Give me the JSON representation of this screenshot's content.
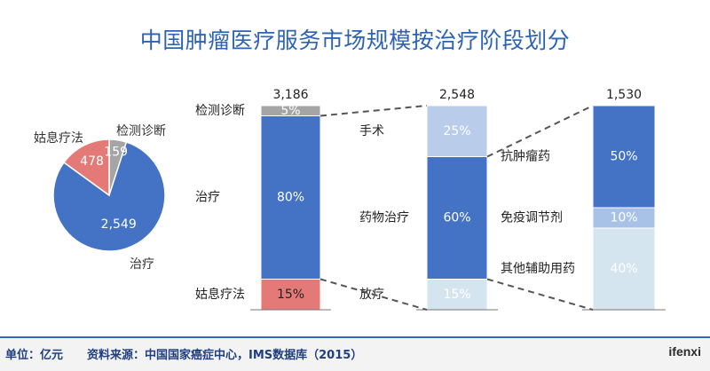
{
  "title": "中国肿瘤医疗服务市场规模按治疗阶段划分",
  "footer": {
    "unit": "单位：亿元",
    "source": "资料来源：中国国家癌症中心，IMS数据库（2015）",
    "brand": "ifenxi"
  },
  "colors": {
    "title": "#2d63b5",
    "dark_blue": "#4472c4",
    "salmon": "#e47a78",
    "gray": "#a5a5a5",
    "light_blue": "#b9cdeb",
    "pale_blue": "#d5e5f0",
    "mid_blue": "#a8c1e6"
  },
  "chart_data": [
    {
      "type": "pie",
      "slices": [
        {
          "label": "治疗",
          "value": 2549,
          "display": "2,549",
          "color": "#4472c4"
        },
        {
          "label": "姑息疗法",
          "value": 478,
          "display": "478",
          "color": "#e47a78"
        },
        {
          "label": "检测诊断",
          "value": 159,
          "display": "159",
          "color": "#a5a5a5"
        }
      ]
    },
    {
      "type": "bar",
      "stacked": true,
      "percent": true,
      "total": "3,186",
      "segments": [
        {
          "label": "姑息疗法",
          "value": 15,
          "display": "15%",
          "color": "#e47a78"
        },
        {
          "label": "治疗",
          "value": 80,
          "display": "80%",
          "color": "#4472c4"
        },
        {
          "label": "检测诊断",
          "value": 5,
          "display": "5%",
          "color": "#a5a5a5"
        }
      ]
    },
    {
      "type": "bar",
      "stacked": true,
      "percent": true,
      "total": "2,548",
      "segments": [
        {
          "label": "放疗",
          "value": 15,
          "display": "15%",
          "color": "#d5e5f0"
        },
        {
          "label": "药物治疗",
          "value": 60,
          "display": "60%",
          "color": "#4472c4"
        },
        {
          "label": "手术",
          "value": 25,
          "display": "25%",
          "color": "#b9cdeb"
        }
      ]
    },
    {
      "type": "bar",
      "stacked": true,
      "percent": true,
      "total": "1,530",
      "segments": [
        {
          "label": "其他辅助用药",
          "value": 40,
          "display": "40%",
          "color": "#d5e5f0"
        },
        {
          "label": "免疫调节剂",
          "value": 10,
          "display": "10%",
          "color": "#a8c1e6"
        },
        {
          "label": "抗肿瘤药",
          "value": 50,
          "display": "50%",
          "color": "#4472c4"
        }
      ]
    }
  ]
}
